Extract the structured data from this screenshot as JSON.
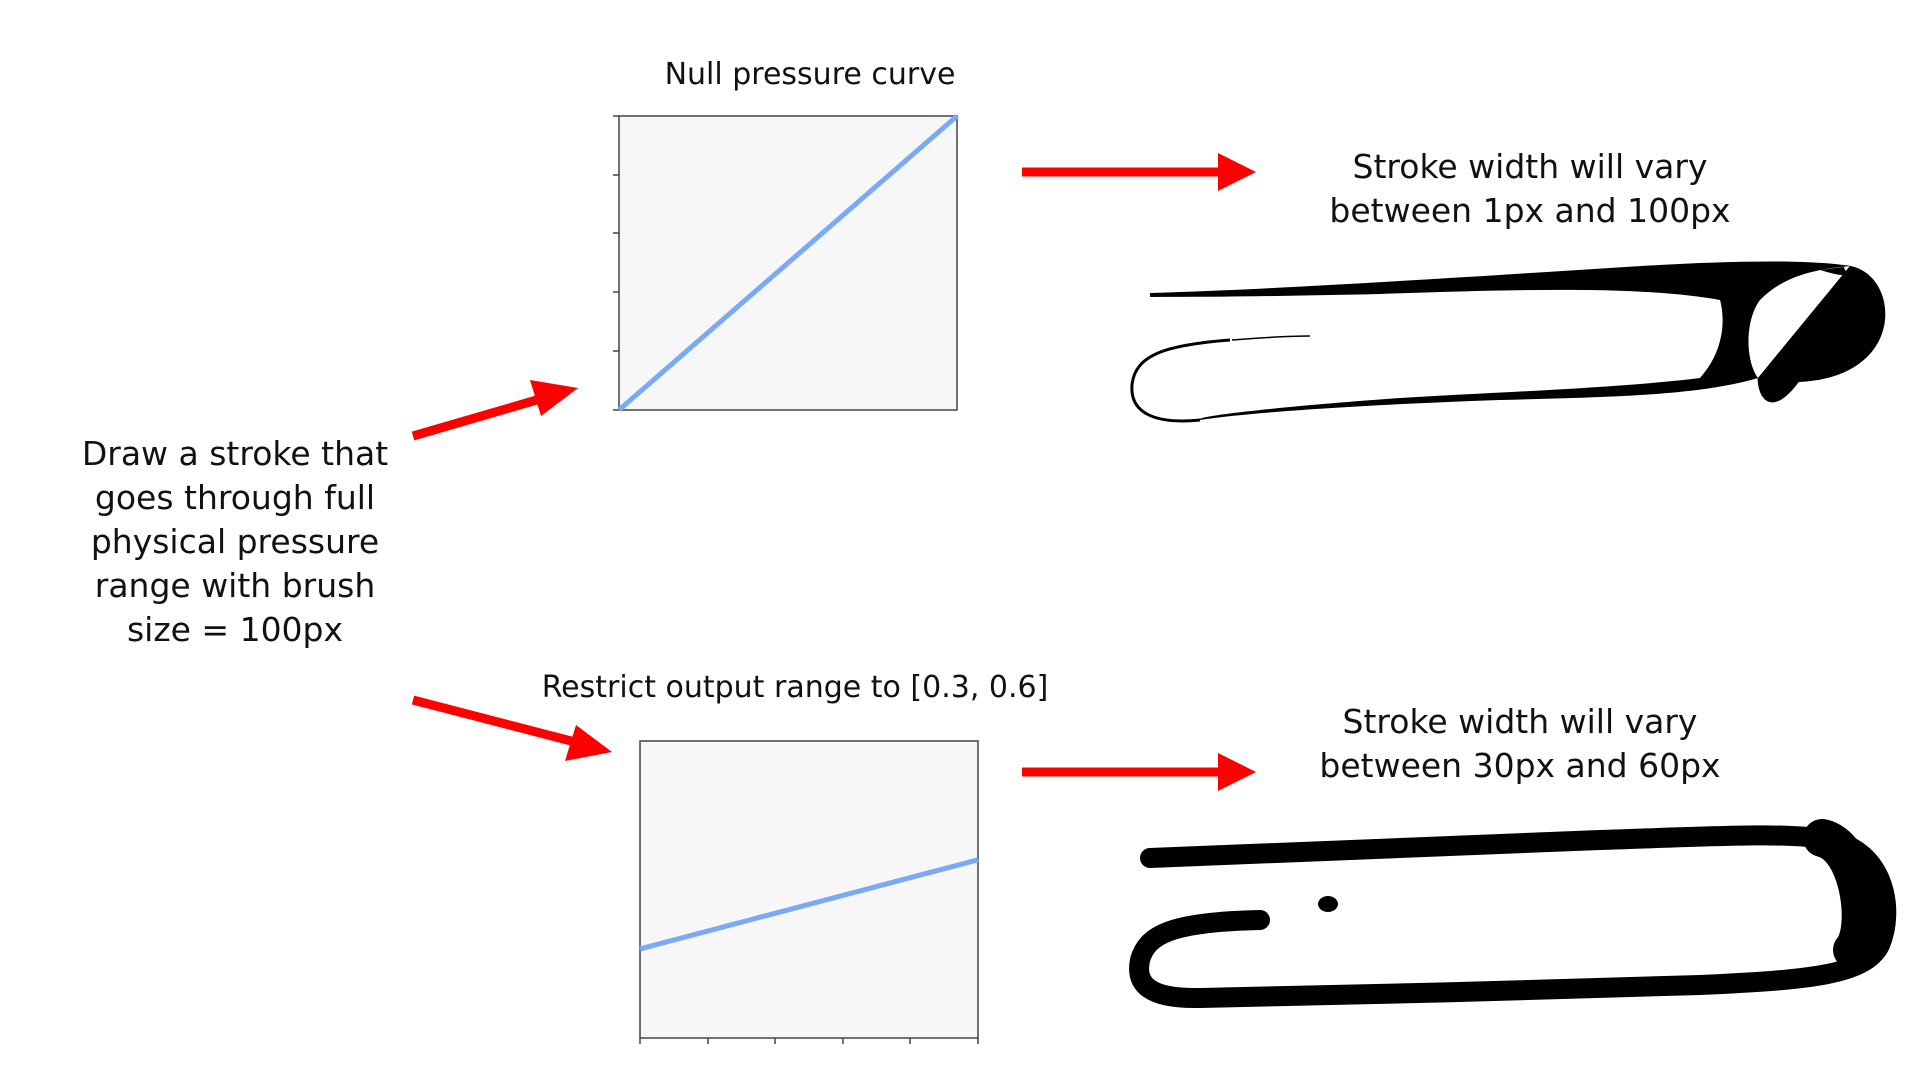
{
  "left_label": "Draw a stroke that\ngoes through full\nphysical pressure\nrange with brush\nsize = 100px",
  "top_panel": {
    "title": "Null pressure curve",
    "result": "Stroke width will vary\nbetween 1px and 100px",
    "curve": {
      "input": [
        0,
        1
      ],
      "output": [
        0,
        1
      ]
    },
    "line_color": "#7aa9f5"
  },
  "bottom_panel": {
    "title": "Restrict output range to [0.3, 0.6]",
    "result": "Stroke width will vary\nbetween 30px and 60px",
    "curve": {
      "input": [
        0,
        1
      ],
      "output": [
        0.3,
        0.6
      ]
    },
    "line_color": "#7aa9f5"
  },
  "colors": {
    "arrow": "#ff0000",
    "plot_bg": "#f7f7f7",
    "stroke": "#000000"
  }
}
